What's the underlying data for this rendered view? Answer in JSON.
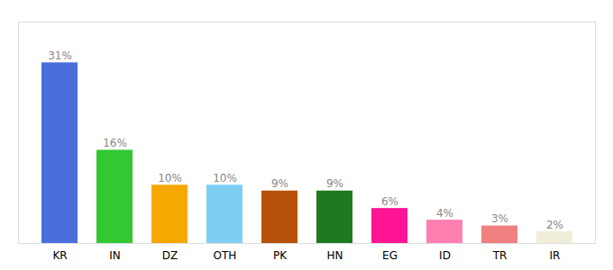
{
  "chart_data": {
    "type": "bar",
    "categories": [
      "KR",
      "IN",
      "DZ",
      "OTH",
      "PK",
      "HN",
      "EG",
      "ID",
      "TR",
      "IR"
    ],
    "values": [
      31,
      16,
      10,
      10,
      9,
      9,
      6,
      4,
      3,
      2
    ],
    "value_labels": [
      "31%",
      "16%",
      "10%",
      "10%",
      "9%",
      "9%",
      "6%",
      "4%",
      "3%",
      "2%"
    ],
    "colors": [
      "#4a6fdc",
      "#32c832",
      "#f5a800",
      "#7ecef4",
      "#b5510a",
      "#1e7a1e",
      "#ff1493",
      "#ff80b0",
      "#f08080",
      "#f0eed8"
    ],
    "ylim": [
      0,
      38
    ],
    "data_labels": true,
    "tick_labels": "x",
    "grid": false
  }
}
